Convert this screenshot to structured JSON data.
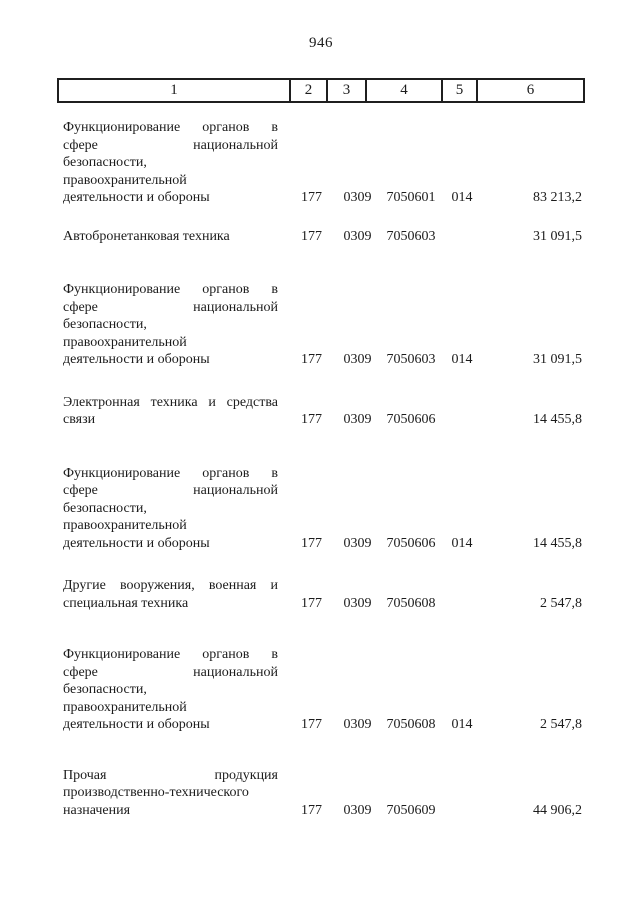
{
  "page": {
    "number": "946"
  },
  "table": {
    "header": [
      "1",
      "2",
      "3",
      "4",
      "5",
      "6"
    ],
    "rows": [
      {
        "lines": [
          "Функционирование органов в",
          "сфере национальной",
          "безопасности,",
          "правоохранительной",
          "деятельности и обороны"
        ],
        "col2": "177",
        "col3": "0309",
        "col4": "7050601",
        "col5": "014",
        "col6": "83 213,2"
      },
      {
        "lines": [
          "Автобронетанковая техника"
        ],
        "col2": "177",
        "col3": "0309",
        "col4": "7050603",
        "col5": "",
        "col6": "31 091,5"
      },
      {
        "lines": [
          "Функционирование органов в",
          "сфере национальной",
          "безопасности,",
          "правоохранительной",
          "деятельности и обороны"
        ],
        "col2": "177",
        "col3": "0309",
        "col4": "7050603",
        "col5": "014",
        "col6": "31 091,5"
      },
      {
        "lines": [
          "Электронная техника и средства",
          "связи"
        ],
        "col2": "177",
        "col3": "0309",
        "col4": "7050606",
        "col5": "",
        "col6": "14 455,8"
      },
      {
        "lines": [
          "Функционирование органов в",
          "сфере национальной",
          "безопасности,",
          "правоохранительной",
          "деятельности и обороны"
        ],
        "col2": "177",
        "col3": "0309",
        "col4": "7050606",
        "col5": "014",
        "col6": "14 455,8"
      },
      {
        "lines": [
          "Другие вооружения, военная и",
          "специальная техника"
        ],
        "col2": "177",
        "col3": "0309",
        "col4": "7050608",
        "col5": "",
        "col6": "2 547,8"
      },
      {
        "lines": [
          "Функционирование органов в",
          "сфере национальной",
          "безопасности,",
          "правоохранительной",
          "деятельности и обороны"
        ],
        "col2": "177",
        "col3": "0309",
        "col4": "7050608",
        "col5": "014",
        "col6": "2 547,8"
      },
      {
        "lines": [
          "Прочая продукция",
          "производственно-технического",
          "назначения"
        ],
        "col2": "177",
        "col3": "0309",
        "col4": "7050609",
        "col5": "",
        "col6": "44 906,2"
      }
    ]
  }
}
